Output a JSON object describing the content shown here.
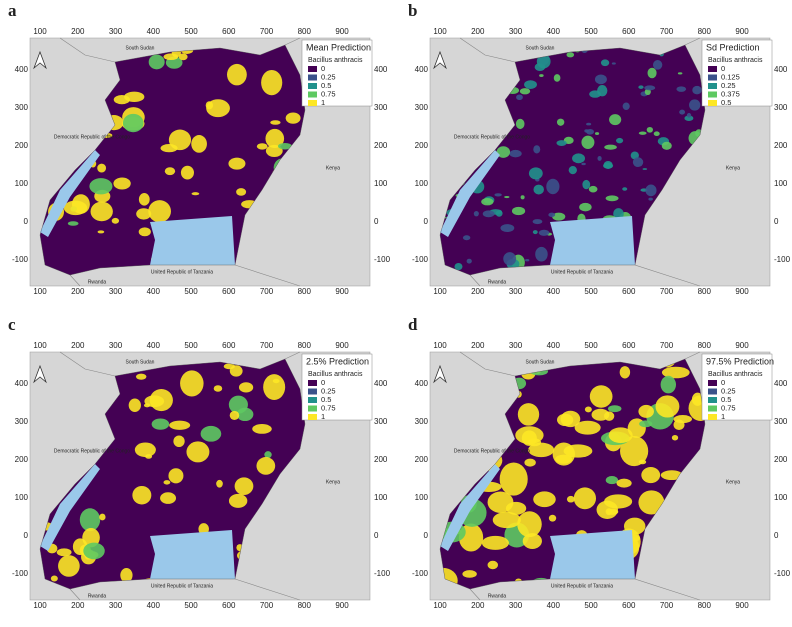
{
  "xticks": [
    100,
    200,
    300,
    400,
    500,
    600,
    700,
    800,
    900
  ],
  "yticks": [
    400,
    300,
    200,
    100,
    0,
    -100
  ],
  "countries": [
    "South Sudan",
    "Democratic Republic of the Congo",
    "Kenya",
    "United Republic of Tanzania",
    "Rwanda"
  ],
  "panels": [
    {
      "label": "a",
      "legend_title": "Mean Prediction",
      "species": "Bacillus anthracis",
      "legend": [
        {
          "label": 0,
          "color": "#440154"
        },
        {
          "label": 0.25,
          "color": "#3b528b"
        },
        {
          "label": 0.5,
          "color": "#21918c"
        },
        {
          "label": 0.75,
          "color": "#5ec962"
        },
        {
          "label": 1,
          "color": "#fde725"
        }
      ]
    },
    {
      "label": "b",
      "legend_title": "Sd Prediction",
      "species": "Bacillus anthracis",
      "legend": [
        {
          "label": 0,
          "color": "#440154"
        },
        {
          "label": 0.125,
          "color": "#3b528b"
        },
        {
          "label": 0.25,
          "color": "#21918c"
        },
        {
          "label": 0.375,
          "color": "#5ec962"
        },
        {
          "label": 0.5,
          "color": "#fde725"
        }
      ]
    },
    {
      "label": "c",
      "legend_title": "2.5% Prediction",
      "species": "Bacillus anthracis",
      "legend": [
        {
          "label": 0,
          "color": "#440154"
        },
        {
          "label": 0.25,
          "color": "#3b528b"
        },
        {
          "label": 0.5,
          "color": "#21918c"
        },
        {
          "label": 0.75,
          "color": "#5ec962"
        },
        {
          "label": 1,
          "color": "#fde725"
        }
      ]
    },
    {
      "label": "d",
      "legend_title": "97.5% Prediction",
      "species": "Bacillus anthracis",
      "legend": [
        {
          "label": 0,
          "color": "#440154"
        },
        {
          "label": 0.25,
          "color": "#3b528b"
        },
        {
          "label": 0.5,
          "color": "#21918c"
        },
        {
          "label": 0.75,
          "color": "#5ec962"
        },
        {
          "label": 1,
          "color": "#fde725"
        }
      ]
    }
  ]
}
